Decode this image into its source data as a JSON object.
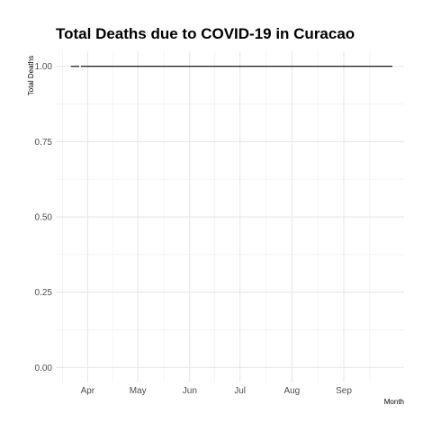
{
  "chart_data": {
    "type": "line",
    "title": "Total Deaths due to COVID-19 in Curacao",
    "xlabel": "Month",
    "ylabel": "Total Deaths",
    "xlim": [
      "2020-03-13",
      "2020-10-07"
    ],
    "ylim": [
      -0.05,
      1.05
    ],
    "x_ticks": [
      "2020-04-01",
      "2020-05-01",
      "2020-06-01",
      "2020-07-01",
      "2020-08-01",
      "2020-09-01"
    ],
    "x_tick_labels": [
      "Apr",
      "May",
      "Jun",
      "Jul",
      "Aug",
      "Sep"
    ],
    "y_ticks": [
      0,
      0.25,
      0.5,
      0.75,
      1
    ],
    "y_tick_labels": [
      "0.00",
      "0.25",
      "0.50",
      "0.75",
      "1.00"
    ],
    "grid": true,
    "series": [
      {
        "segments": [
          {
            "x": [
              "2020-03-22",
              "2020-03-27"
            ],
            "y": [
              1,
              1
            ]
          },
          {
            "x": [
              "2020-03-28",
              "2020-09-30"
            ],
            "y": [
              1,
              1
            ]
          }
        ]
      }
    ],
    "colors": {
      "line": "#000000",
      "grid": "#e5e5e5",
      "tick_text": "#4d4d4d"
    }
  }
}
